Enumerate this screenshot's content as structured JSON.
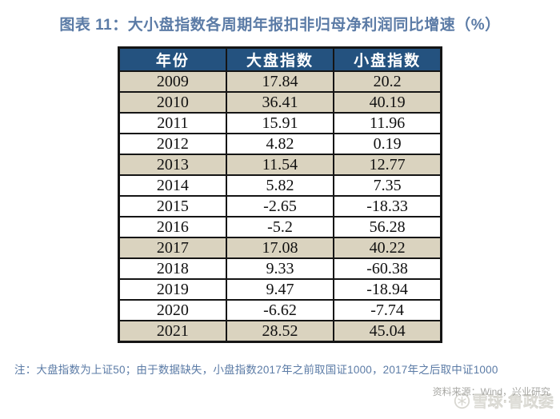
{
  "page": {
    "title": "图表 11：大小盘指数各周期年报扣非归母净利润同比增速（%）",
    "note": "注：大盘指数为上证50；由于数据缺失，小盘指数2017年之前取国证1000，2017年之后取中证1000",
    "source": "资料来源：Wind，兴业研究"
  },
  "watermark": {
    "icon": "snowball-icon",
    "text": "雪球·鲁政委"
  },
  "table": {
    "headers": [
      "年份",
      "大盘指数",
      "小盘指数"
    ],
    "rows": [
      {
        "year": "2009",
        "large_cap": "17.84",
        "small_cap": "20.2",
        "highlight": true
      },
      {
        "year": "2010",
        "large_cap": "36.41",
        "small_cap": "40.19",
        "highlight": true
      },
      {
        "year": "2011",
        "large_cap": "15.91",
        "small_cap": "11.96",
        "highlight": false
      },
      {
        "year": "2012",
        "large_cap": "4.82",
        "small_cap": "0.19",
        "highlight": false
      },
      {
        "year": "2013",
        "large_cap": "11.54",
        "small_cap": "12.77",
        "highlight": true
      },
      {
        "year": "2014",
        "large_cap": "5.82",
        "small_cap": "7.35",
        "highlight": false
      },
      {
        "year": "2015",
        "large_cap": "-2.65",
        "small_cap": "-18.33",
        "highlight": false
      },
      {
        "year": "2016",
        "large_cap": "-5.2",
        "small_cap": "56.28",
        "highlight": false
      },
      {
        "year": "2017",
        "large_cap": "17.08",
        "small_cap": "40.22",
        "highlight": true
      },
      {
        "year": "2018",
        "large_cap": "9.33",
        "small_cap": "-60.38",
        "highlight": false
      },
      {
        "year": "2019",
        "large_cap": "9.47",
        "small_cap": "-18.94",
        "highlight": false
      },
      {
        "year": "2020",
        "large_cap": "-6.62",
        "small_cap": "-7.74",
        "highlight": false
      },
      {
        "year": "2021",
        "large_cap": "28.52",
        "small_cap": "45.04",
        "highlight": true
      }
    ]
  },
  "colors": {
    "header_bg": "#24527F",
    "header_text": "#FFFFFF",
    "highlight_row_bg": "#DAD3BF",
    "table_border": "#151515",
    "title_text": "#5B7BA6",
    "note_text": "#5B7BA6",
    "source_text": "#A8A8A4",
    "watermark_text": "#DCDBD5"
  }
}
